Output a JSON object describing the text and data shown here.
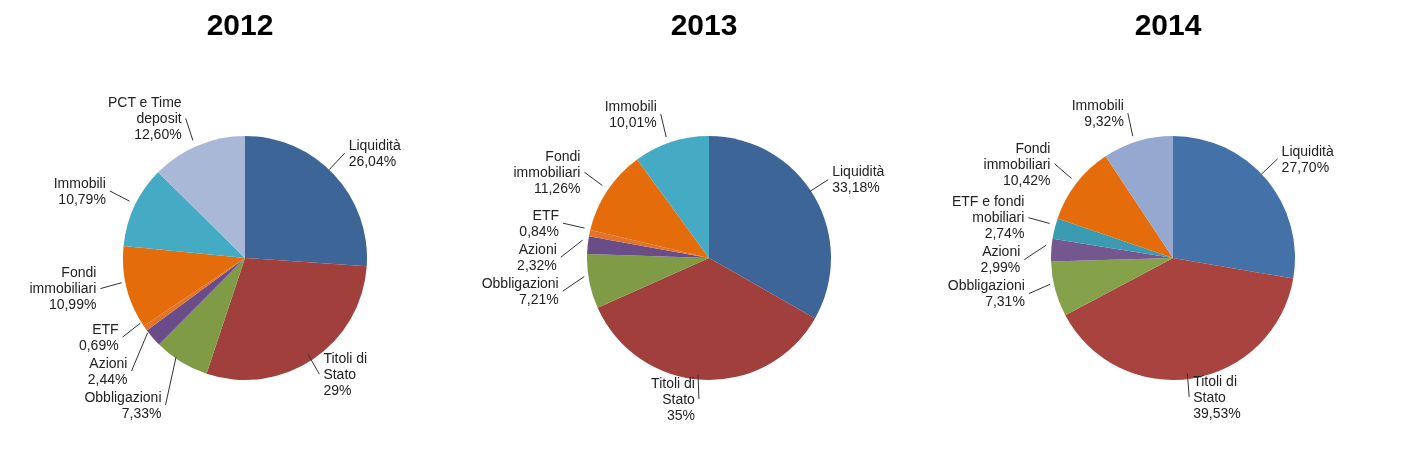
{
  "chart_data": [
    {
      "type": "pie",
      "title": "2012",
      "categories": [
        "Liquidità",
        "Titoli di Stato",
        "Obbligazioni",
        "Azioni",
        "ETF",
        "Fondi immobiliari",
        "Immobili",
        "PCT e Time deposit"
      ],
      "values": [
        26.04,
        29,
        7.33,
        2.44,
        0.69,
        10.99,
        10.79,
        12.6
      ],
      "value_labels": [
        "26,04%",
        "29%",
        "7,33%",
        "2,44%",
        "0,69%",
        "10,99%",
        "10,79%",
        "12,60%"
      ],
      "colors": [
        "#3e6597",
        "#a13f3c",
        "#7f9b45",
        "#6a4c89",
        "#e1732b",
        "#e46c0a",
        "#45abc4",
        "#aab8d8"
      ]
    },
    {
      "type": "pie",
      "title": "2013",
      "categories": [
        "Liquidità",
        "Titoli di Stato",
        "Obbligazioni",
        "Azioni",
        "ETF",
        "Fondi immobiliari",
        "Immobili"
      ],
      "values": [
        33.18,
        35,
        7.21,
        2.32,
        0.84,
        11.26,
        10.01
      ],
      "value_labels": [
        "33,18%",
        "35%",
        "7,21%",
        "2,32%",
        "0,84%",
        "11,26%",
        "10,01%"
      ],
      "colors": [
        "#3e6597",
        "#a13f3c",
        "#7f9b45",
        "#6a4c89",
        "#e1732b",
        "#e46c0a",
        "#45abc4"
      ]
    },
    {
      "type": "pie",
      "title": "2014",
      "categories": [
        "Liquidità",
        "Titoli di Stato",
        "Obbligazioni",
        "Azioni",
        "ETF e fondi mobiliari",
        "Fondi immobiliari",
        "Immobili"
      ],
      "values": [
        27.7,
        39.53,
        7.31,
        2.99,
        2.74,
        10.42,
        9.32
      ],
      "value_labels": [
        "27,70%",
        "39,53%",
        "7,31%",
        "2,99%",
        "2,74%",
        "10,42%",
        "9,32%"
      ],
      "colors": [
        "#4472a8",
        "#a9433f",
        "#85a24b",
        "#74578f",
        "#3b9bb2",
        "#e46c0a",
        "#94a8d0"
      ]
    }
  ]
}
